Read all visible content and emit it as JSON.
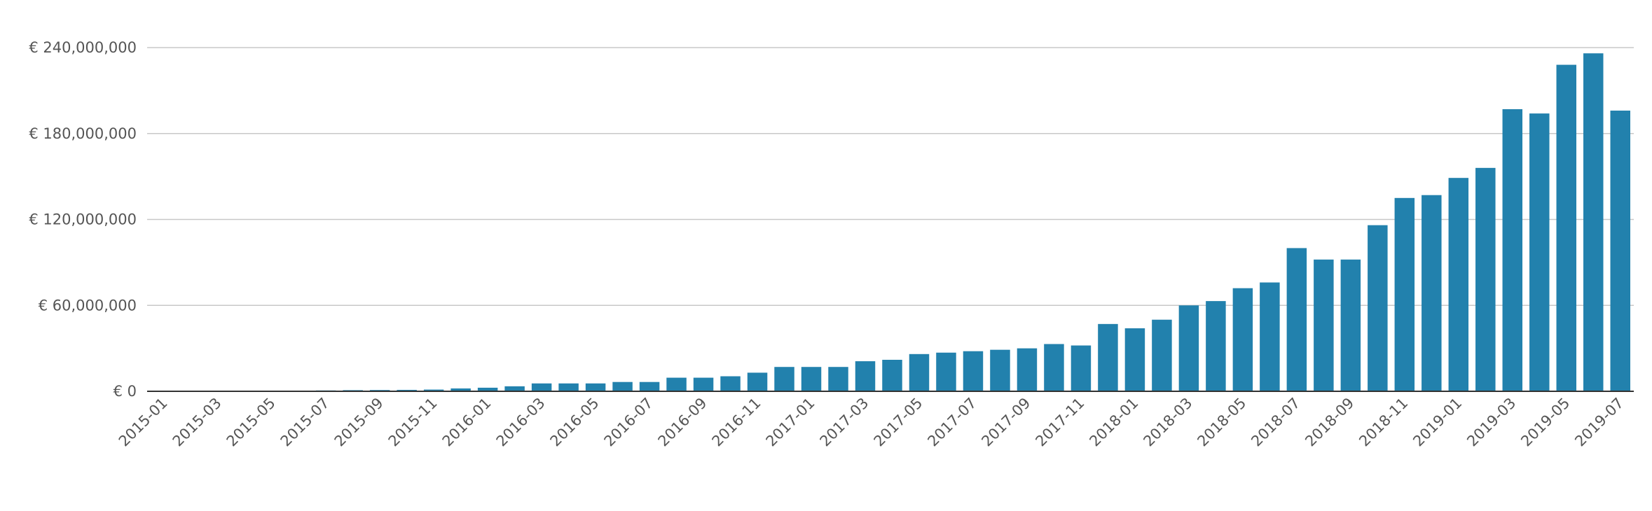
{
  "chart_data": {
    "type": "bar",
    "categories": [
      "2015-01",
      null,
      "2015-03",
      null,
      "2015-05",
      null,
      "2015-07",
      null,
      "2015-09",
      null,
      "2015-11",
      null,
      "2016-01",
      null,
      "2016-03",
      null,
      "2016-05",
      null,
      "2016-07",
      null,
      "2016-09",
      null,
      "2016-11",
      null,
      "2017-01",
      null,
      "2017-03",
      null,
      "2017-05",
      null,
      "2017-07",
      null,
      "2017-09",
      null,
      "2017-11",
      null,
      "2018-01",
      null,
      "2018-03",
      null,
      "2018-05",
      null,
      "2018-07",
      null,
      "2018-09",
      null,
      "2018-11",
      null,
      "2019-01",
      null,
      "2019-03",
      null,
      "2019-05",
      null,
      "2019-07"
    ],
    "values": [
      50000,
      100000,
      150000,
      200000,
      300000,
      400000,
      600000,
      800000,
      900000,
      1000000,
      1200000,
      2000000,
      2500000,
      3500000,
      5500000,
      5500000,
      5500000,
      6500000,
      6500000,
      9500000,
      9500000,
      10500000,
      13000000,
      17000000,
      17000000,
      17000000,
      21000000,
      22000000,
      26000000,
      27000000,
      28000000,
      29000000,
      30000000,
      33000000,
      32000000,
      47000000,
      44000000,
      50000000,
      60000000,
      63000000,
      72000000,
      76000000,
      100000000,
      92000000,
      92000000,
      116000000,
      135000000,
      137000000,
      149000000,
      156000000,
      197000000,
      194000000,
      228000000,
      236000000,
      196000000
    ],
    "color": "#2281ad",
    "ylim": [
      0,
      240000000
    ],
    "yticks": [
      {
        "value": 0,
        "label": "€ 0"
      },
      {
        "value": 60000000,
        "label": "€ 60,000,000"
      },
      {
        "value": 120000000,
        "label": "€ 120,000,000"
      },
      {
        "value": 180000000,
        "label": "€ 180,000,000"
      },
      {
        "value": 240000000,
        "label": "€ 240,000,000"
      }
    ],
    "grid": true
  }
}
